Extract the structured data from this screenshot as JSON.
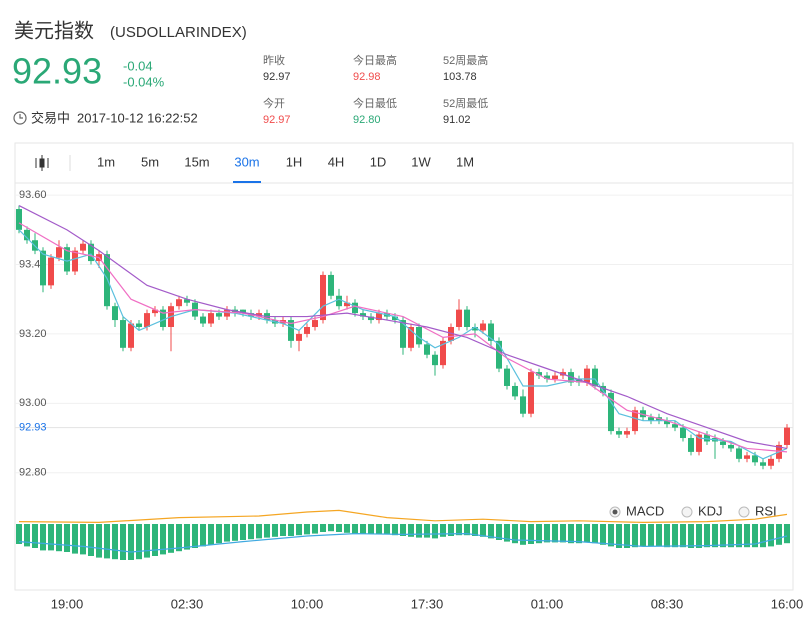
{
  "header": {
    "title": "美元指数",
    "code": "(USDOLLARINDEX)",
    "price": "92.93",
    "change": "-0.04",
    "change_pct": "-0.04%",
    "stats": [
      {
        "label": "昨收",
        "value": "92.97",
        "color": "#333333"
      },
      {
        "label": "今日最高",
        "value": "92.98",
        "color": "#f04b4b"
      },
      {
        "label": "52周最高",
        "value": "103.78",
        "color": "#333333"
      },
      {
        "label": "今开",
        "value": "92.97",
        "color": "#f04b4b"
      },
      {
        "label": "今日最低",
        "value": "92.80",
        "color": "#2aa876"
      },
      {
        "label": "52周最低",
        "value": "91.02",
        "color": "#333333"
      }
    ],
    "status": "交易中",
    "time": "2017-10-12 16:22:52"
  },
  "toolbar": {
    "intervals": [
      "1m",
      "5m",
      "15m",
      "30m",
      "1H",
      "4H",
      "1D",
      "1W",
      "1M"
    ],
    "active": 3
  },
  "chart_data": {
    "type": "candlestick",
    "up_color": "#f04b4b",
    "down_color": "#2db57a",
    "ylim": [
      92.73,
      93.635
    ],
    "yticks": [
      {
        "value": 93.6,
        "label": "93.60"
      },
      {
        "value": 93.4,
        "label": "93.40"
      },
      {
        "value": 93.2,
        "label": "93.20"
      },
      {
        "value": 93.0,
        "label": "93.00"
      },
      {
        "value": 92.8,
        "label": "92.80"
      }
    ],
    "last_price": 92.93,
    "categories": [
      null,
      null,
      null,
      null,
      null,
      null,
      "19:00",
      null,
      null,
      null,
      null,
      null,
      null,
      null,
      null,
      null,
      null,
      null,
      null,
      null,
      null,
      "02:30",
      null,
      null,
      null,
      null,
      null,
      null,
      null,
      null,
      null,
      null,
      null,
      null,
      null,
      null,
      "10:00",
      null,
      null,
      null,
      null,
      null,
      null,
      null,
      null,
      null,
      null,
      null,
      null,
      null,
      null,
      "17:30",
      null,
      null,
      null,
      null,
      null,
      null,
      null,
      null,
      null,
      null,
      null,
      null,
      null,
      null,
      "01:00",
      null,
      null,
      null,
      null,
      null,
      null,
      null,
      null,
      null,
      null,
      null,
      null,
      null,
      null,
      "08:30",
      null,
      null,
      null,
      null,
      null,
      null,
      null,
      null,
      null,
      null,
      null,
      null,
      null,
      null,
      "16:00"
    ],
    "candles": [
      [
        93.56,
        93.57,
        93.49,
        93.5
      ],
      [
        93.5,
        93.51,
        93.46,
        93.47
      ],
      [
        93.47,
        93.49,
        93.43,
        93.44
      ],
      [
        93.44,
        93.45,
        93.32,
        93.34
      ],
      [
        93.34,
        93.43,
        93.33,
        93.42
      ],
      [
        93.42,
        93.47,
        93.41,
        93.45
      ],
      [
        93.45,
        93.46,
        93.37,
        93.38
      ],
      [
        93.38,
        93.45,
        93.37,
        93.44
      ],
      [
        93.44,
        93.47,
        93.43,
        93.46
      ],
      [
        93.46,
        93.47,
        93.4,
        93.41
      ],
      [
        93.41,
        93.44,
        93.39,
        93.43
      ],
      [
        93.43,
        93.44,
        93.27,
        93.28
      ],
      [
        93.28,
        93.29,
        93.22,
        93.24
      ],
      [
        93.24,
        93.25,
        93.15,
        93.16
      ],
      [
        93.16,
        93.24,
        93.15,
        93.23
      ],
      [
        93.23,
        93.24,
        93.21,
        93.22
      ],
      [
        93.22,
        93.27,
        93.21,
        93.26
      ],
      [
        93.26,
        93.28,
        93.25,
        93.27
      ],
      [
        93.27,
        93.28,
        93.21,
        93.22
      ],
      [
        93.22,
        93.29,
        93.15,
        93.28
      ],
      [
        93.28,
        93.31,
        93.27,
        93.3
      ],
      [
        93.3,
        93.31,
        93.28,
        93.29
      ],
      [
        93.29,
        93.3,
        93.24,
        93.25
      ],
      [
        93.25,
        93.26,
        93.22,
        93.23
      ],
      [
        93.23,
        93.27,
        93.22,
        93.26
      ],
      [
        93.26,
        93.27,
        93.24,
        93.25
      ],
      [
        93.25,
        93.28,
        93.24,
        93.27
      ],
      [
        93.27,
        93.28,
        93.25,
        93.26
      ],
      [
        93.27,
        93.27,
        93.25,
        93.26
      ],
      [
        93.26,
        93.27,
        93.24,
        93.25
      ],
      [
        93.25,
        93.27,
        93.24,
        93.26
      ],
      [
        93.26,
        93.27,
        93.23,
        93.24
      ],
      [
        93.24,
        93.25,
        93.22,
        93.23
      ],
      [
        93.23,
        93.25,
        93.22,
        93.24
      ],
      [
        93.24,
        93.25,
        93.16,
        93.18
      ],
      [
        93.18,
        93.21,
        93.15,
        93.2
      ],
      [
        93.2,
        93.23,
        93.19,
        93.22
      ],
      [
        93.22,
        93.25,
        93.21,
        93.24
      ],
      [
        93.24,
        93.38,
        93.23,
        93.37
      ],
      [
        93.37,
        93.38,
        93.3,
        93.31
      ],
      [
        93.31,
        93.33,
        93.27,
        93.28
      ],
      [
        93.28,
        93.31,
        93.27,
        93.29
      ],
      [
        93.29,
        93.3,
        93.25,
        93.26
      ],
      [
        93.26,
        93.27,
        93.24,
        93.25
      ],
      [
        93.25,
        93.26,
        93.23,
        93.24
      ],
      [
        93.24,
        93.27,
        93.23,
        93.26
      ],
      [
        93.26,
        93.27,
        93.24,
        93.25
      ],
      [
        93.25,
        93.26,
        93.23,
        93.24
      ],
      [
        93.24,
        93.25,
        93.14,
        93.16
      ],
      [
        93.16,
        93.23,
        93.15,
        93.22
      ],
      [
        93.22,
        93.23,
        93.16,
        93.17
      ],
      [
        93.17,
        93.18,
        93.13,
        93.14
      ],
      [
        93.14,
        93.15,
        93.08,
        93.11
      ],
      [
        93.11,
        93.19,
        93.1,
        93.18
      ],
      [
        93.18,
        93.23,
        93.17,
        93.22
      ],
      [
        93.22,
        93.3,
        93.21,
        93.27
      ],
      [
        93.27,
        93.28,
        93.21,
        93.22
      ],
      [
        93.22,
        93.23,
        93.19,
        93.21
      ],
      [
        93.21,
        93.24,
        93.2,
        93.23
      ],
      [
        93.23,
        93.24,
        93.16,
        93.18
      ],
      [
        93.18,
        93.19,
        93.09,
        93.1
      ],
      [
        93.1,
        93.11,
        93.04,
        93.05
      ],
      [
        93.05,
        93.06,
        93.01,
        93.02
      ],
      [
        93.02,
        93.04,
        92.96,
        92.97
      ],
      [
        92.97,
        93.1,
        92.96,
        93.09
      ],
      [
        93.09,
        93.1,
        93.07,
        93.08
      ],
      [
        93.08,
        93.09,
        93.06,
        93.07
      ],
      [
        93.07,
        93.09,
        93.06,
        93.08
      ],
      [
        93.08,
        93.1,
        93.07,
        93.09
      ],
      [
        93.09,
        93.1,
        93.05,
        93.06
      ],
      [
        93.07,
        93.08,
        93.05,
        93.06
      ],
      [
        93.06,
        93.11,
        93.05,
        93.1
      ],
      [
        93.1,
        93.11,
        93.04,
        93.05
      ],
      [
        93.05,
        93.06,
        93.02,
        93.03
      ],
      [
        93.03,
        93.04,
        92.91,
        92.92
      ],
      [
        92.92,
        92.93,
        92.9,
        92.91
      ],
      [
        92.91,
        92.93,
        92.9,
        92.92
      ],
      [
        92.92,
        92.99,
        92.91,
        92.98
      ],
      [
        92.98,
        92.99,
        92.95,
        92.96
      ],
      [
        92.96,
        92.97,
        92.94,
        92.95
      ],
      [
        92.96,
        92.97,
        92.94,
        92.95
      ],
      [
        92.95,
        92.96,
        92.93,
        92.94
      ],
      [
        92.94,
        92.95,
        92.92,
        92.93
      ],
      [
        92.93,
        92.94,
        92.89,
        92.9
      ],
      [
        92.9,
        92.91,
        92.85,
        92.86
      ],
      [
        92.86,
        92.92,
        92.85,
        92.91
      ],
      [
        92.91,
        92.92,
        92.88,
        92.89
      ],
      [
        92.9,
        92.91,
        92.84,
        92.89
      ],
      [
        92.89,
        92.9,
        92.87,
        92.88
      ],
      [
        92.88,
        92.89,
        92.86,
        92.87
      ],
      [
        92.87,
        92.88,
        92.83,
        92.84
      ],
      [
        92.84,
        92.86,
        92.83,
        92.85
      ],
      [
        92.85,
        92.86,
        92.82,
        92.83
      ],
      [
        92.83,
        92.84,
        92.81,
        92.82
      ],
      [
        92.82,
        92.85,
        92.81,
        92.84
      ],
      [
        92.84,
        92.89,
        92.83,
        92.88
      ],
      [
        92.88,
        92.94,
        92.87,
        92.93
      ]
    ],
    "ma_lines": [
      {
        "color": "#5bc0de",
        "x": [
          0,
          3,
          6,
          9,
          11,
          13,
          15,
          19,
          22,
          27,
          33,
          35,
          38,
          40,
          43,
          47,
          50,
          52,
          55,
          57,
          60,
          63,
          66,
          70,
          72,
          75,
          78,
          82,
          85,
          89,
          93,
          96
        ],
        "values": [
          93.5,
          93.43,
          93.41,
          93.43,
          93.36,
          93.25,
          93.21,
          93.25,
          93.27,
          93.26,
          93.23,
          93.21,
          93.28,
          93.3,
          93.27,
          93.25,
          93.19,
          93.16,
          93.19,
          93.22,
          93.17,
          93.05,
          93.05,
          93.07,
          93.07,
          92.97,
          92.95,
          92.95,
          92.9,
          92.89,
          92.84,
          92.87
        ]
      },
      {
        "color": "#f06fc4",
        "x": [
          0,
          6,
          10,
          14,
          18,
          22,
          28,
          34,
          38,
          42,
          48,
          53,
          57,
          61,
          66,
          71,
          76,
          81,
          86,
          91,
          96
        ],
        "values": [
          93.52,
          93.44,
          93.42,
          93.3,
          93.26,
          93.27,
          93.26,
          93.23,
          93.25,
          93.28,
          93.25,
          93.19,
          93.2,
          93.13,
          93.07,
          93.06,
          92.98,
          92.95,
          92.91,
          92.87,
          92.86
        ]
      },
      {
        "color": "#a35bc9",
        "x": [
          0,
          6,
          10,
          16,
          21,
          26,
          31,
          36,
          41,
          46,
          51,
          56,
          61,
          66,
          71,
          76,
          81,
          86,
          91,
          96
        ],
        "values": [
          93.57,
          93.5,
          93.44,
          93.34,
          93.3,
          93.27,
          93.25,
          93.25,
          93.26,
          93.24,
          93.22,
          93.19,
          93.14,
          93.1,
          93.06,
          93.02,
          92.97,
          92.93,
          92.89,
          92.87
        ]
      }
    ],
    "macd": {
      "ylim": [
        -0.0825,
        0.03
      ],
      "pos_color": "#f04b4b",
      "neg_color": "#2db57a",
      "histogram": [
        -0.025,
        -0.028,
        -0.03,
        -0.033,
        -0.033,
        -0.034,
        -0.035,
        -0.037,
        -0.038,
        -0.04,
        -0.042,
        -0.043,
        -0.044,
        -0.045,
        -0.045,
        -0.044,
        -0.042,
        -0.04,
        -0.038,
        -0.036,
        -0.034,
        -0.032,
        -0.03,
        -0.028,
        -0.026,
        -0.024,
        -0.022,
        -0.021,
        -0.02,
        -0.019,
        -0.018,
        -0.017,
        -0.016,
        -0.015,
        -0.015,
        -0.014,
        -0.013,
        -0.012,
        -0.01,
        -0.009,
        -0.01,
        -0.011,
        -0.012,
        -0.012,
        -0.012,
        -0.013,
        -0.013,
        -0.014,
        -0.015,
        -0.016,
        -0.017,
        -0.017,
        -0.018,
        -0.016,
        -0.015,
        -0.014,
        -0.014,
        -0.015,
        -0.016,
        -0.018,
        -0.02,
        -0.022,
        -0.024,
        -0.026,
        -0.025,
        -0.024,
        -0.023,
        -0.023,
        -0.023,
        -0.024,
        -0.024,
        -0.023,
        -0.024,
        -0.026,
        -0.028,
        -0.03,
        -0.03,
        -0.029,
        -0.028,
        -0.028,
        -0.028,
        -0.029,
        -0.029,
        -0.029,
        -0.03,
        -0.03,
        -0.029,
        -0.029,
        -0.029,
        -0.029,
        -0.029,
        -0.029,
        -0.029,
        -0.029,
        -0.028,
        -0.026,
        -0.024
      ],
      "lines": [
        {
          "color": "#f5a623",
          "x": [
            0,
            10,
            20,
            30,
            36,
            40,
            46,
            52,
            58,
            64,
            70,
            78,
            86,
            92,
            96
          ],
          "values": [
            0.003,
            0.002,
            0.008,
            0.01,
            0.015,
            0.017,
            0.008,
            0.004,
            0.006,
            0.003,
            0.004,
            0.002,
            0.003,
            0.006,
            0.012
          ]
        },
        {
          "color": "#3fa9e0",
          "x": [
            0,
            8,
            14,
            20,
            28,
            36,
            42,
            48,
            56,
            62,
            70,
            78,
            86,
            92,
            96
          ],
          "values": [
            -0.022,
            -0.028,
            -0.035,
            -0.03,
            -0.022,
            -0.015,
            -0.012,
            -0.013,
            -0.012,
            -0.02,
            -0.022,
            -0.028,
            -0.027,
            -0.025,
            -0.015
          ]
        }
      ],
      "indicators": [
        "MACD",
        "KDJ",
        "RSI"
      ],
      "selected": 0
    }
  }
}
